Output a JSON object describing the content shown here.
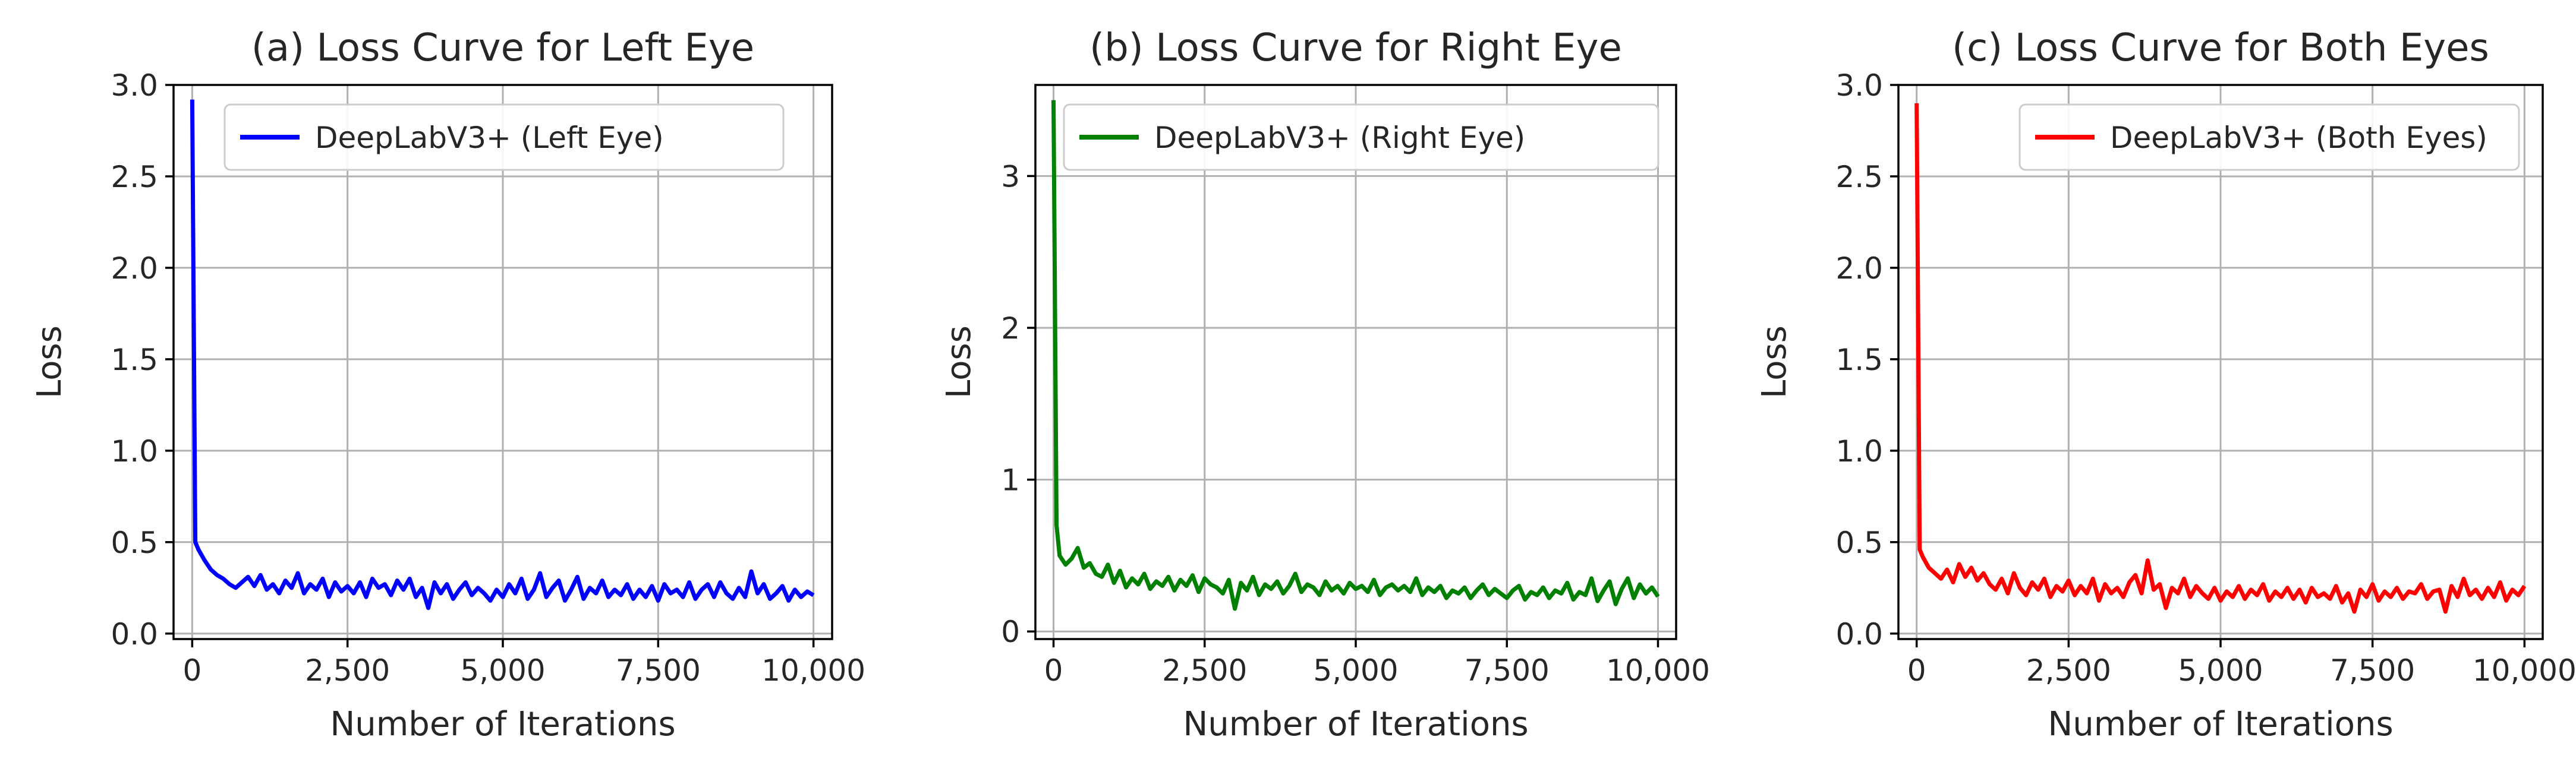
{
  "chart_data": [
    {
      "type": "line",
      "title": "(a) Loss Curve for Left Eye",
      "xlabel": "Number of Iterations",
      "ylabel": "Loss",
      "xlim": [
        -300,
        10300
      ],
      "ylim": [
        -0.03,
        3.0
      ],
      "xticks": [
        0,
        2500,
        5000,
        7500,
        10000
      ],
      "xtick_labels": [
        "0",
        "2,500",
        "5,000",
        "7,500",
        "10,000"
      ],
      "yticks": [
        0.0,
        0.5,
        1.0,
        1.5,
        2.0,
        2.5,
        3.0
      ],
      "ytick_labels": [
        "0.0",
        "0.5",
        "1.0",
        "1.5",
        "2.0",
        "2.5",
        "3.0"
      ],
      "grid": true,
      "legend_position": "top-right",
      "series": [
        {
          "name": "DeepLabV3+ (Left Eye)",
          "color": "#0000ff",
          "x": [
            0,
            50,
            100,
            200,
            300,
            400,
            500,
            600,
            700,
            800,
            900,
            1000,
            1100,
            1200,
            1300,
            1400,
            1500,
            1600,
            1700,
            1800,
            1900,
            2000,
            2100,
            2200,
            2300,
            2400,
            2500,
            2600,
            2700,
            2800,
            2900,
            3000,
            3100,
            3200,
            3300,
            3400,
            3500,
            3600,
            3700,
            3800,
            3900,
            4000,
            4100,
            4200,
            4300,
            4400,
            4500,
            4600,
            4700,
            4800,
            4900,
            5000,
            5100,
            5200,
            5300,
            5400,
            5500,
            5600,
            5700,
            5800,
            5900,
            6000,
            6100,
            6200,
            6300,
            6400,
            6500,
            6600,
            6700,
            6800,
            6900,
            7000,
            7100,
            7200,
            7300,
            7400,
            7500,
            7600,
            7700,
            7800,
            7900,
            8000,
            8100,
            8200,
            8300,
            8400,
            8500,
            8600,
            8700,
            8800,
            8900,
            9000,
            9100,
            9200,
            9300,
            9400,
            9500,
            9600,
            9700,
            9800,
            9900,
            10000
          ],
          "y": [
            2.92,
            0.5,
            0.46,
            0.4,
            0.35,
            0.32,
            0.3,
            0.27,
            0.25,
            0.28,
            0.31,
            0.26,
            0.32,
            0.24,
            0.27,
            0.22,
            0.29,
            0.25,
            0.33,
            0.22,
            0.27,
            0.24,
            0.3,
            0.2,
            0.28,
            0.23,
            0.26,
            0.22,
            0.28,
            0.2,
            0.3,
            0.25,
            0.27,
            0.21,
            0.29,
            0.24,
            0.3,
            0.2,
            0.25,
            0.14,
            0.28,
            0.22,
            0.27,
            0.19,
            0.24,
            0.28,
            0.21,
            0.25,
            0.22,
            0.18,
            0.24,
            0.2,
            0.27,
            0.22,
            0.3,
            0.19,
            0.24,
            0.33,
            0.2,
            0.25,
            0.29,
            0.18,
            0.24,
            0.31,
            0.19,
            0.25,
            0.22,
            0.29,
            0.2,
            0.24,
            0.21,
            0.27,
            0.19,
            0.24,
            0.2,
            0.26,
            0.18,
            0.27,
            0.22,
            0.24,
            0.2,
            0.28,
            0.19,
            0.24,
            0.27,
            0.2,
            0.28,
            0.22,
            0.19,
            0.25,
            0.2,
            0.34,
            0.22,
            0.27,
            0.19,
            0.22,
            0.26,
            0.18,
            0.24,
            0.2,
            0.23,
            0.21
          ]
        }
      ]
    },
    {
      "type": "line",
      "title": "(b) Loss Curve for Right Eye",
      "xlabel": "Number of Iterations",
      "ylabel": "Loss",
      "xlim": [
        -300,
        10300
      ],
      "ylim": [
        -0.05,
        3.6
      ],
      "xticks": [
        0,
        2500,
        5000,
        7500,
        10000
      ],
      "xtick_labels": [
        "0",
        "2,500",
        "5,000",
        "7,500",
        "10,000"
      ],
      "yticks": [
        0,
        1,
        2,
        3
      ],
      "ytick_labels": [
        "0",
        "1",
        "2",
        "3"
      ],
      "grid": true,
      "legend_position": "top-right",
      "series": [
        {
          "name": "DeepLabV3+ (Right Eye)",
          "color": "#008000",
          "x": [
            0,
            50,
            100,
            200,
            300,
            400,
            500,
            600,
            700,
            800,
            900,
            1000,
            1100,
            1200,
            1300,
            1400,
            1500,
            1600,
            1700,
            1800,
            1900,
            2000,
            2100,
            2200,
            2300,
            2400,
            2500,
            2600,
            2700,
            2800,
            2900,
            3000,
            3100,
            3200,
            3300,
            3400,
            3500,
            3600,
            3700,
            3800,
            3900,
            4000,
            4100,
            4200,
            4300,
            4400,
            4500,
            4600,
            4700,
            4800,
            4900,
            5000,
            5100,
            5200,
            5300,
            5400,
            5500,
            5600,
            5700,
            5800,
            5900,
            6000,
            6100,
            6200,
            6300,
            6400,
            6500,
            6600,
            6700,
            6800,
            6900,
            7000,
            7100,
            7200,
            7300,
            7400,
            7500,
            7600,
            7700,
            7800,
            7900,
            8000,
            8100,
            8200,
            8300,
            8400,
            8500,
            8600,
            8700,
            8800,
            8900,
            9000,
            9100,
            9200,
            9300,
            9400,
            9500,
            9600,
            9700,
            9800,
            9900,
            10000
          ],
          "y": [
            3.5,
            0.7,
            0.5,
            0.44,
            0.48,
            0.55,
            0.42,
            0.45,
            0.38,
            0.36,
            0.44,
            0.32,
            0.4,
            0.29,
            0.35,
            0.31,
            0.38,
            0.28,
            0.33,
            0.3,
            0.36,
            0.27,
            0.34,
            0.3,
            0.37,
            0.26,
            0.35,
            0.31,
            0.29,
            0.25,
            0.34,
            0.15,
            0.32,
            0.27,
            0.36,
            0.24,
            0.31,
            0.28,
            0.33,
            0.25,
            0.3,
            0.38,
            0.26,
            0.31,
            0.29,
            0.24,
            0.33,
            0.27,
            0.3,
            0.25,
            0.32,
            0.28,
            0.3,
            0.26,
            0.34,
            0.24,
            0.29,
            0.31,
            0.27,
            0.3,
            0.26,
            0.35,
            0.24,
            0.29,
            0.26,
            0.3,
            0.22,
            0.27,
            0.25,
            0.29,
            0.22,
            0.27,
            0.31,
            0.24,
            0.28,
            0.25,
            0.22,
            0.27,
            0.3,
            0.21,
            0.26,
            0.24,
            0.29,
            0.22,
            0.27,
            0.25,
            0.32,
            0.21,
            0.26,
            0.24,
            0.35,
            0.2,
            0.27,
            0.33,
            0.18,
            0.28,
            0.35,
            0.22,
            0.31,
            0.25,
            0.29,
            0.23
          ]
        }
      ]
    },
    {
      "type": "line",
      "title": "(c) Loss Curve for Both Eyes",
      "xlabel": "Number of Iterations",
      "ylabel": "Loss",
      "xlim": [
        -300,
        10300
      ],
      "ylim": [
        -0.03,
        3.0
      ],
      "xticks": [
        0,
        2500,
        5000,
        7500,
        10000
      ],
      "xtick_labels": [
        "0",
        "2,500",
        "5,000",
        "7,500",
        "10,000"
      ],
      "yticks": [
        0.0,
        0.5,
        1.0,
        1.5,
        2.0,
        2.5,
        3.0
      ],
      "ytick_labels": [
        "0.0",
        "0.5",
        "1.0",
        "1.5",
        "2.0",
        "2.5",
        "3.0"
      ],
      "grid": true,
      "legend_position": "top-right",
      "series": [
        {
          "name": "DeepLabV3+ (Both Eyes)",
          "color": "#ff0000",
          "x": [
            0,
            50,
            100,
            200,
            300,
            400,
            500,
            600,
            700,
            800,
            900,
            1000,
            1100,
            1200,
            1300,
            1400,
            1500,
            1600,
            1700,
            1800,
            1900,
            2000,
            2100,
            2200,
            2300,
            2400,
            2500,
            2600,
            2700,
            2800,
            2900,
            3000,
            3100,
            3200,
            3300,
            3400,
            3500,
            3600,
            3700,
            3800,
            3900,
            4000,
            4100,
            4200,
            4300,
            4400,
            4500,
            4600,
            4700,
            4800,
            4900,
            5000,
            5100,
            5200,
            5300,
            5400,
            5500,
            5600,
            5700,
            5800,
            5900,
            6000,
            6100,
            6200,
            6300,
            6400,
            6500,
            6600,
            6700,
            6800,
            6900,
            7000,
            7100,
            7200,
            7300,
            7400,
            7500,
            7600,
            7700,
            7800,
            7900,
            8000,
            8100,
            8200,
            8300,
            8400,
            8500,
            8600,
            8700,
            8800,
            8900,
            9000,
            9100,
            9200,
            9300,
            9400,
            9500,
            9600,
            9700,
            9800,
            9900,
            10000
          ],
          "y": [
            2.9,
            0.46,
            0.42,
            0.36,
            0.33,
            0.3,
            0.35,
            0.28,
            0.38,
            0.31,
            0.36,
            0.29,
            0.33,
            0.27,
            0.24,
            0.3,
            0.22,
            0.33,
            0.25,
            0.21,
            0.28,
            0.24,
            0.3,
            0.2,
            0.26,
            0.23,
            0.29,
            0.21,
            0.26,
            0.22,
            0.3,
            0.18,
            0.27,
            0.22,
            0.25,
            0.2,
            0.28,
            0.32,
            0.22,
            0.4,
            0.24,
            0.27,
            0.14,
            0.25,
            0.22,
            0.3,
            0.2,
            0.26,
            0.22,
            0.19,
            0.25,
            0.18,
            0.23,
            0.2,
            0.26,
            0.19,
            0.24,
            0.21,
            0.27,
            0.18,
            0.23,
            0.2,
            0.25,
            0.19,
            0.24,
            0.17,
            0.25,
            0.2,
            0.22,
            0.19,
            0.26,
            0.17,
            0.22,
            0.12,
            0.24,
            0.2,
            0.27,
            0.18,
            0.23,
            0.2,
            0.25,
            0.19,
            0.23,
            0.22,
            0.27,
            0.19,
            0.23,
            0.24,
            0.12,
            0.26,
            0.2,
            0.3,
            0.21,
            0.24,
            0.19,
            0.25,
            0.2,
            0.28,
            0.18,
            0.24,
            0.21,
            0.26
          ]
        }
      ]
    }
  ]
}
